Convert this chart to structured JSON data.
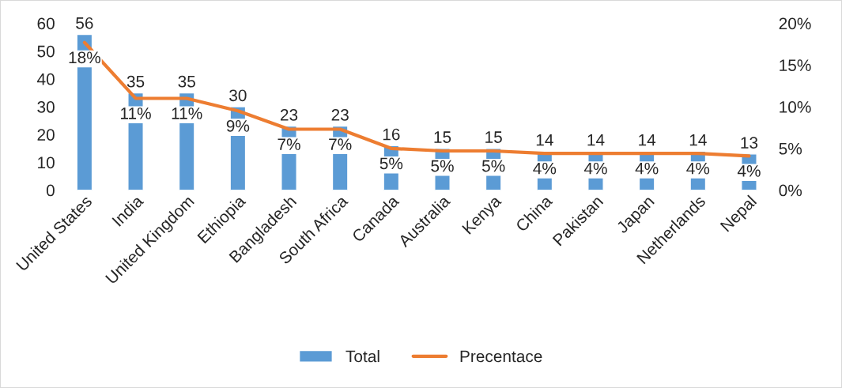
{
  "chart_data": {
    "type": "bar",
    "categories": [
      "United States",
      "India",
      "United Kingdom",
      "Ethiopia",
      "Bangladesh",
      "South Africa",
      "Canada",
      "Australia",
      "Kenya",
      "China",
      "Pakistan",
      "Japan",
      "Netherlands",
      "Nepal"
    ],
    "series": [
      {
        "name": "Total",
        "color": "#5b9bd5",
        "values": [
          56,
          35,
          35,
          30,
          23,
          23,
          16,
          15,
          15,
          14,
          14,
          14,
          14,
          13
        ],
        "data_labels": true
      },
      {
        "name": "Precentace",
        "type": "line",
        "axis": "y2",
        "color": "#ed7d31",
        "values": [
          17.7,
          11.0,
          11.0,
          9.5,
          7.3,
          7.3,
          5.0,
          4.7,
          4.7,
          4.4,
          4.4,
          4.4,
          4.4,
          4.1
        ],
        "value_labels": [
          "18%",
          "11%",
          "11%",
          "9%",
          "7%",
          "7%",
          "5%",
          "5%",
          "5%",
          "4%",
          "4%",
          "4%",
          "4%",
          "4%"
        ]
      }
    ],
    "ylim": [
      0,
      60
    ],
    "yticks": [
      0,
      10,
      20,
      30,
      40,
      50,
      60
    ],
    "y2lim": [
      0,
      20
    ],
    "y2ticks": [
      {
        "value": 0,
        "label": "0%"
      },
      {
        "value": 5,
        "label": "5%"
      },
      {
        "value": 10,
        "label": "10%"
      },
      {
        "value": 15,
        "label": "15%"
      },
      {
        "value": 20,
        "label": "20%"
      }
    ],
    "grid": false,
    "legend": "bottom",
    "marker": "none",
    "line_style": "solid"
  }
}
